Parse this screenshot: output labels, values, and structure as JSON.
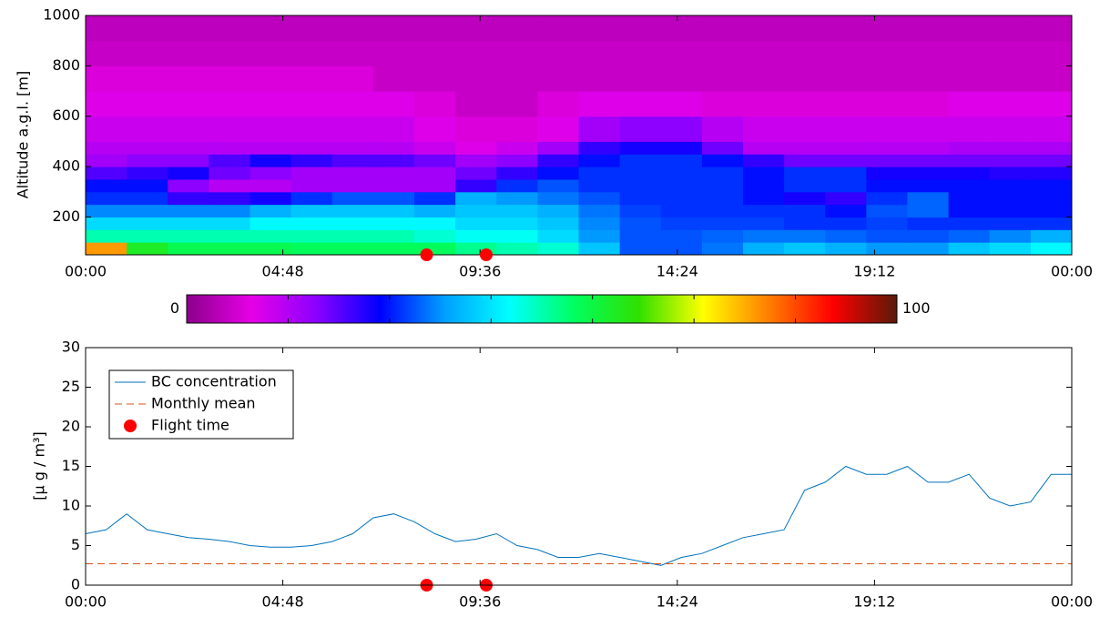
{
  "chart_data": [
    {
      "type": "heatmap",
      "ylabel": "Altitude a.g.l. [m]",
      "xlim": [
        0,
        24
      ],
      "xticks": [
        {
          "value": 0,
          "label": "00:00"
        },
        {
          "value": 4.8,
          "label": "04:48"
        },
        {
          "value": 9.6,
          "label": "09:36"
        },
        {
          "value": 14.4,
          "label": "14:24"
        },
        {
          "value": 19.2,
          "label": "19:12"
        },
        {
          "value": 24,
          "label": "00:00"
        }
      ],
      "ylim": [
        50,
        1000
      ],
      "yticks": [
        200,
        400,
        600,
        800,
        1000
      ],
      "x_bins": [
        0,
        1,
        2,
        3,
        4,
        5,
        6,
        7,
        8,
        9,
        10,
        11,
        12,
        13,
        14,
        15,
        16,
        17,
        18,
        19,
        20,
        21,
        22,
        23,
        24
      ],
      "y_bins": [
        50,
        100,
        150,
        200,
        250,
        300,
        350,
        400,
        450,
        500,
        600,
        700,
        800,
        900,
        1000
      ],
      "z": [
        [
          80,
          60,
          56,
          56,
          56,
          55,
          55,
          55,
          55,
          52,
          50,
          48,
          40,
          32,
          32,
          34,
          38,
          40,
          38,
          36,
          36,
          40,
          42,
          45
        ],
        [
          50,
          50,
          50,
          50,
          50,
          50,
          50,
          50,
          48,
          46,
          46,
          42,
          36,
          32,
          32,
          33,
          34,
          34,
          33,
          32,
          32,
          33,
          35,
          38
        ],
        [
          42,
          42,
          42,
          42,
          45,
          45,
          45,
          45,
          45,
          42,
          42,
          40,
          35,
          32,
          31,
          31,
          31,
          30,
          30,
          31,
          30,
          30,
          30,
          30
        ],
        [
          35,
          35,
          35,
          35,
          38,
          40,
          40,
          40,
          38,
          40,
          40,
          38,
          34,
          31,
          30,
          30,
          30,
          30,
          28,
          32,
          33,
          28,
          28,
          28
        ],
        [
          30,
          30,
          24,
          24,
          26,
          30,
          32,
          32,
          30,
          38,
          36,
          34,
          32,
          30,
          30,
          30,
          28,
          26,
          24,
          30,
          33,
          28,
          28,
          28
        ],
        [
          28,
          28,
          18,
          14,
          14,
          16,
          16,
          16,
          16,
          24,
          30,
          32,
          30,
          30,
          30,
          30,
          28,
          30,
          30,
          28,
          28,
          28,
          28,
          28
        ],
        [
          22,
          24,
          26,
          20,
          18,
          16,
          16,
          16,
          16,
          20,
          24,
          28,
          30,
          30,
          30,
          30,
          28,
          30,
          30,
          26,
          26,
          26,
          25,
          25
        ],
        [
          16,
          18,
          18,
          22,
          26,
          24,
          22,
          22,
          20,
          16,
          18,
          24,
          28,
          30,
          30,
          28,
          24,
          20,
          20,
          20,
          20,
          20,
          20,
          20
        ],
        [
          14,
          14,
          14,
          14,
          14,
          14,
          14,
          14,
          12,
          10,
          12,
          16,
          24,
          26,
          26,
          20,
          14,
          14,
          14,
          14,
          14,
          15,
          15,
          15
        ],
        [
          12,
          12,
          12,
          12,
          12,
          12,
          12,
          12,
          10,
          8,
          8,
          10,
          16,
          18,
          18,
          14,
          12,
          12,
          12,
          12,
          12,
          12,
          12,
          12
        ],
        [
          10,
          10,
          10,
          10,
          10,
          10,
          10,
          10,
          8,
          6,
          6,
          8,
          10,
          10,
          10,
          8,
          8,
          8,
          8,
          8,
          8,
          10,
          10,
          10
        ],
        [
          8,
          8,
          8,
          8,
          8,
          8,
          8,
          6,
          6,
          6,
          6,
          6,
          6,
          6,
          6,
          6,
          6,
          6,
          6,
          6,
          6,
          6,
          6,
          6
        ],
        [
          6,
          6,
          6,
          6,
          6,
          6,
          6,
          6,
          6,
          6,
          6,
          6,
          6,
          6,
          6,
          6,
          6,
          6,
          6,
          6,
          6,
          6,
          6,
          6
        ],
        [
          5,
          5,
          5,
          5,
          5,
          5,
          5,
          5,
          5,
          5,
          5,
          5,
          5,
          5,
          5,
          5,
          5,
          5,
          5,
          5,
          5,
          5,
          5,
          5
        ]
      ],
      "clim": [
        0,
        100
      ],
      "colormap": [
        "#8b008b",
        "#e600e6",
        "#8c00ff",
        "#0000ff",
        "#00a0ff",
        "#00ffff",
        "#00ff60",
        "#30e000",
        "#ffff00",
        "#ff8000",
        "#ff0000",
        "#5a1a0a"
      ],
      "flights": {
        "color": "#ff0000",
        "x": [
          8.3,
          9.75
        ]
      }
    },
    {
      "type": "line",
      "ylabel": "[μ g / m³]",
      "xlim": [
        0,
        24
      ],
      "xticks": [
        {
          "value": 0,
          "label": "00:00"
        },
        {
          "value": 4.8,
          "label": "04:48"
        },
        {
          "value": 9.6,
          "label": "09:36"
        },
        {
          "value": 14.4,
          "label": "14:24"
        },
        {
          "value": 19.2,
          "label": "19:12"
        },
        {
          "value": 24,
          "label": "00:00"
        }
      ],
      "ylim": [
        0,
        30
      ],
      "yticks": [
        0,
        5,
        10,
        15,
        20,
        25,
        30
      ],
      "legend": "upper left",
      "series": [
        {
          "name": "BC concentration",
          "color": "#0072bd",
          "style": "solid",
          "x": [
            0,
            0.5,
            1,
            1.5,
            2,
            2.5,
            3,
            3.5,
            4,
            4.5,
            5,
            5.5,
            6,
            6.5,
            7,
            7.5,
            8,
            8.5,
            9,
            9.5,
            10,
            10.5,
            11,
            11.5,
            12,
            12.5,
            13,
            13.5,
            14,
            14.5,
            15,
            15.5,
            16,
            16.5,
            17,
            17.5,
            18,
            18.5,
            19,
            19.5,
            20,
            20.5,
            21,
            21.5,
            22,
            22.5,
            23,
            23.5,
            24
          ],
          "values": [
            6.5,
            7,
            9,
            7,
            6.5,
            6,
            5.8,
            5.5,
            5,
            4.8,
            4.8,
            5,
            5.5,
            6.5,
            8.5,
            9,
            8,
            6.5,
            5.5,
            5.8,
            6.5,
            5,
            4.5,
            3.5,
            3.5,
            4,
            3.5,
            3,
            2.5,
            3.5,
            4,
            5,
            6,
            6.5,
            7,
            12,
            13,
            15,
            14,
            14,
            15,
            13,
            13,
            14,
            11,
            10,
            10.5,
            14,
            14
          ]
        },
        {
          "name": "Monthly mean",
          "color": "#d95319",
          "style": "dashed",
          "x": [
            0,
            24
          ],
          "values": [
            2.7,
            2.7
          ]
        },
        {
          "name": "Flight time",
          "color": "#ff0000",
          "style": "marker",
          "x": [
            8.3,
            9.75
          ],
          "values": [
            0,
            0
          ]
        }
      ]
    }
  ]
}
